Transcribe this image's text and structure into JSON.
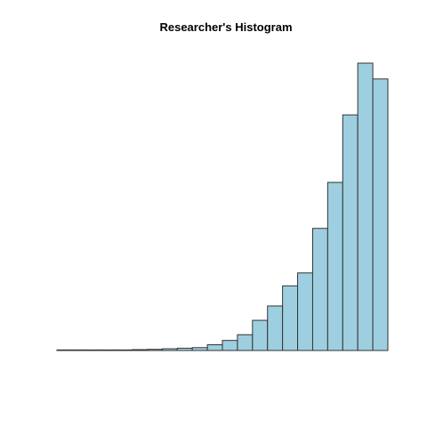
{
  "chart_data": {
    "type": "bar",
    "title": "Researcher's Histogram",
    "xlabel": "",
    "ylabel": "",
    "axes_visible": false,
    "grid": false,
    "legend": "none",
    "bar_fill": "#9ecfe0",
    "bar_stroke": "#333333",
    "ylim": [
      0,
      100
    ],
    "values": [
      0.2,
      0.2,
      0.2,
      0.2,
      0.2,
      0.3,
      0.4,
      0.6,
      0.8,
      1.0,
      2.0,
      3.5,
      5.5,
      10.5,
      15.5,
      22.5,
      27.0,
      42.5,
      58.5,
      82.0,
      100.0,
      94.5
    ]
  }
}
